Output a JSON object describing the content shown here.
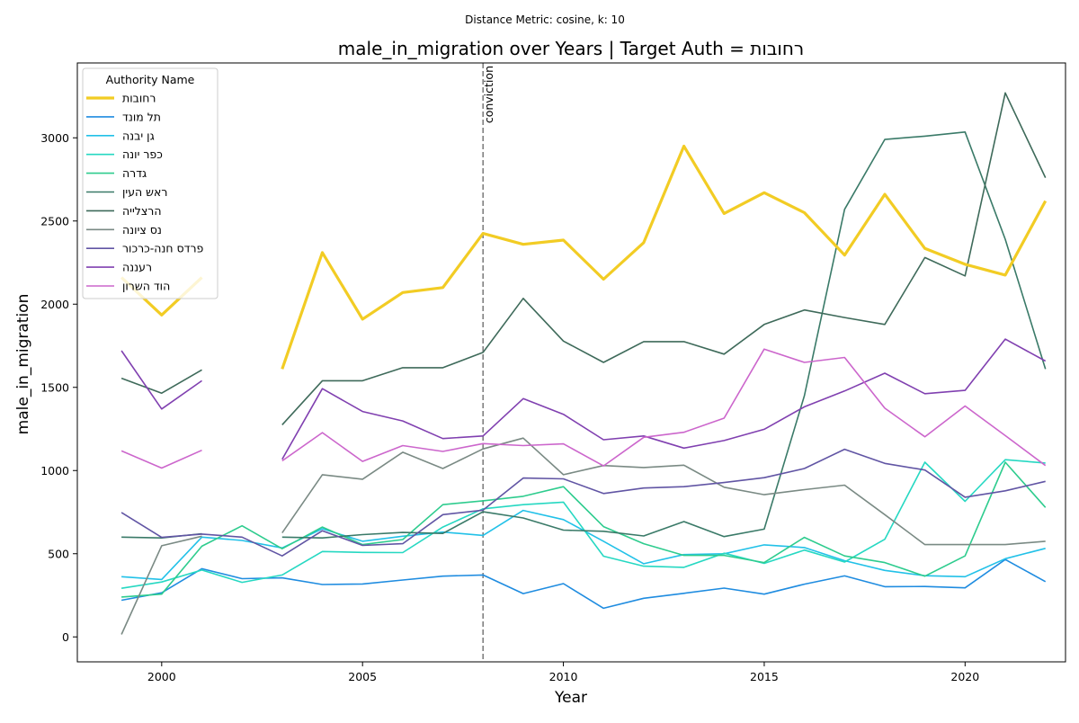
{
  "figure": {
    "suptitle": "Distance Metric: cosine, k: 10"
  },
  "chart_data": {
    "type": "line",
    "title": "male_in_migration over Years | Target Auth = רחובות",
    "xlabel": "Year",
    "ylabel": "male_in_migration",
    "xlim": [
      1997.9,
      2022.5
    ],
    "ylim": [
      -150,
      3450
    ],
    "xticks": [
      2000,
      2005,
      2010,
      2015,
      2020
    ],
    "yticks": [
      0,
      500,
      1000,
      1500,
      2000,
      2500,
      3000
    ],
    "grid": false,
    "legend": {
      "title": "Authority Name",
      "placement": "top-left"
    },
    "annotations": [
      {
        "type": "vline",
        "x": 2008,
        "label": "conviction",
        "style": "dashed",
        "color": "#808080"
      }
    ],
    "x": [
      1999,
      2000,
      2001,
      2002,
      2003,
      2004,
      2005,
      2006,
      2007,
      2008,
      2009,
      2010,
      2011,
      2012,
      2013,
      2014,
      2015,
      2016,
      2017,
      2018,
      2019,
      2020,
      2021,
      2022
    ],
    "series": [
      {
        "name": "רחובות",
        "color": "#f2cc24",
        "width": 3.2,
        "values": [
          2160,
          1935,
          2160,
          null,
          1610,
          2310,
          1910,
          2070,
          2100,
          2425,
          2360,
          2385,
          2150,
          2370,
          2950,
          2545,
          2670,
          2550,
          2295,
          2660,
          2335,
          2240,
          2175,
          2620
        ]
      },
      {
        "name": "תל מונד",
        "color": "#1f8ce0",
        "width": 1.6,
        "values": [
          220,
          265,
          410,
          350,
          355,
          315,
          318,
          342,
          365,
          372,
          260,
          320,
          172,
          232,
          262,
          293,
          257,
          317,
          367,
          302,
          303,
          295,
          465,
          332
        ]
      },
      {
        "name": "גן יבנה",
        "color": "#22c1e8",
        "width": 1.6,
        "values": [
          362,
          345,
          600,
          580,
          535,
          650,
          575,
          605,
          630,
          610,
          760,
          705,
          575,
          440,
          495,
          500,
          553,
          537,
          458,
          400,
          368,
          362,
          470,
          532
        ]
      },
      {
        "name": "כפר יונה",
        "color": "#26d8c2",
        "width": 1.6,
        "values": [
          292,
          330,
          402,
          328,
          372,
          513,
          508,
          507,
          660,
          770,
          795,
          810,
          485,
          425,
          418,
          503,
          442,
          522,
          450,
          587,
          1050,
          815,
          1065,
          1045
        ]
      },
      {
        "name": "גדרה",
        "color": "#2ecc8e",
        "width": 1.6,
        "values": [
          240,
          257,
          545,
          668,
          530,
          660,
          555,
          585,
          795,
          818,
          845,
          903,
          663,
          560,
          490,
          490,
          447,
          598,
          487,
          447,
          365,
          487,
          1050,
          778
        ]
      },
      {
        "name": "ראש העין",
        "color": "#3a7a68",
        "width": 1.6,
        "values": [
          600,
          595,
          620,
          null,
          600,
          595,
          615,
          628,
          622,
          752,
          715,
          642,
          635,
          607,
          693,
          603,
          648,
          1450,
          2570,
          2990,
          3010,
          3035,
          2390,
          1610
        ]
      },
      {
        "name": "הרצלייה",
        "color": "#3e6a5a",
        "width": 1.6,
        "values": [
          1555,
          1465,
          1605,
          null,
          1275,
          1540,
          1540,
          1618,
          1618,
          1710,
          2035,
          1778,
          1650,
          1775,
          1775,
          1700,
          1878,
          1965,
          1920,
          1878,
          2280,
          2170,
          3270,
          2760
        ]
      },
      {
        "name": "נס ציונה",
        "color": "#7a8a84",
        "width": 1.6,
        "values": [
          15,
          548,
          605,
          null,
          625,
          975,
          948,
          1110,
          1012,
          1130,
          1195,
          975,
          1030,
          1018,
          1032,
          900,
          855,
          885,
          912,
          735,
          555,
          555,
          555,
          575
        ]
      },
      {
        "name": "פרדס חנה-כרכור",
        "color": "#6155a4",
        "width": 1.6,
        "values": [
          748,
          598,
          618,
          600,
          487,
          638,
          550,
          560,
          735,
          762,
          955,
          950,
          862,
          895,
          903,
          928,
          957,
          1012,
          1128,
          1043,
          1003,
          840,
          878,
          935
        ]
      },
      {
        "name": "רעננה",
        "color": "#8040b0",
        "width": 1.6,
        "values": [
          1720,
          1370,
          1540,
          null,
          1068,
          1492,
          1355,
          1298,
          1192,
          1208,
          1432,
          1338,
          1185,
          1208,
          1135,
          1180,
          1248,
          1383,
          1478,
          1585,
          1462,
          1482,
          1790,
          1658
        ]
      },
      {
        "name": "הוד השרון",
        "color": "#cc66cc",
        "width": 1.6,
        "values": [
          1118,
          1015,
          1122,
          null,
          1058,
          1228,
          1055,
          1150,
          1115,
          1162,
          1150,
          1160,
          1028,
          1200,
          1230,
          1315,
          1730,
          1650,
          1680,
          1375,
          1203,
          1388,
          1210,
          1030
        ]
      }
    ]
  }
}
